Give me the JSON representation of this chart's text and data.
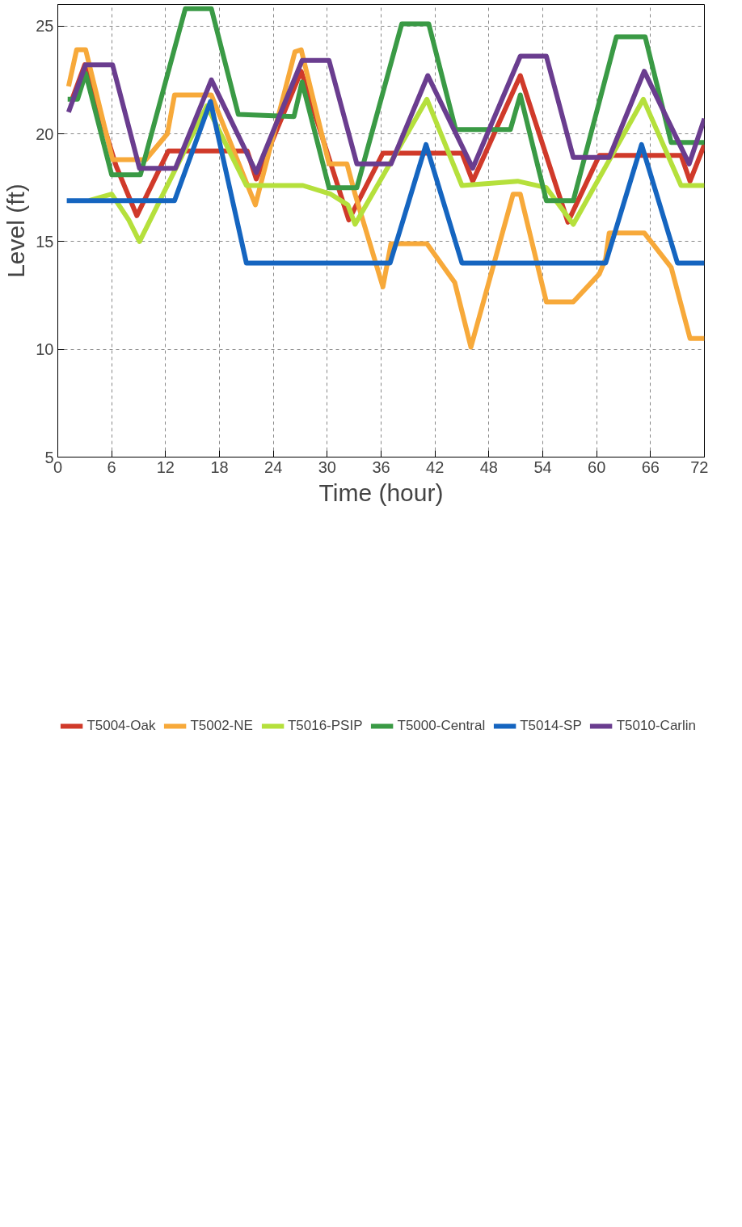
{
  "chart_data": {
    "type": "line",
    "xlabel": "Time (hour)",
    "ylabel": "Level (ft)",
    "xlim": [
      0,
      72
    ],
    "xticks": [
      0,
      6,
      12,
      18,
      24,
      30,
      36,
      42,
      48,
      54,
      60,
      66,
      72
    ],
    "ylim": [
      5,
      26
    ],
    "yticks": [
      5,
      10,
      15,
      20,
      25
    ],
    "grid": true,
    "legend": "bottom",
    "marker": "none",
    "line_style": "solid",
    "series": [
      {
        "name": "T5004-Oak",
        "color": "#d03a2a",
        "x": [
          1.5,
          3,
          6.5,
          8.8,
          12.3,
          21.1,
          22.1,
          27.1,
          32.4,
          36.2,
          45,
          46.2,
          51.5,
          56.8,
          60.3,
          69.4,
          70.4,
          72
        ],
        "values": [
          21.5,
          23.2,
          18.5,
          16.2,
          19.2,
          19.2,
          17.9,
          22.9,
          16,
          19.1,
          19.1,
          17.8,
          22.7,
          15.9,
          19,
          19,
          17.8,
          19.5
        ]
      },
      {
        "name": "T5002-NE",
        "color": "#f7a93a",
        "x": [
          1.2,
          2.1,
          3.1,
          6.1,
          9.8,
          12.2,
          13,
          17.1,
          22,
          26.4,
          27.1,
          30.2,
          32.2,
          33.1,
          36.2,
          37.1,
          41.1,
          44.2,
          46,
          50.7,
          51.5,
          54.4,
          57.4,
          60.3,
          61,
          61.4,
          65.3,
          68.3,
          70.4,
          72
        ],
        "values": [
          22.2,
          23.9,
          23.9,
          18.8,
          18.8,
          20,
          21.8,
          21.8,
          16.7,
          23.8,
          23.9,
          18.6,
          18.6,
          17.2,
          12.9,
          14.9,
          14.9,
          13.1,
          10.1,
          17.2,
          17.2,
          12.2,
          12.2,
          13.5,
          14.2,
          15.4,
          15.4,
          13.8,
          10.5,
          10.5
        ]
      },
      {
        "name": "T5016-PSIP",
        "color": "#b5e03c",
        "x": [
          3.5,
          6,
          7.9,
          9.1,
          16.6,
          21,
          27.3,
          30.4,
          32.3,
          33.1,
          41.1,
          45,
          51.2,
          54.4,
          57.4,
          65.2,
          69.4,
          72
        ],
        "values": [
          16.9,
          17.2,
          16,
          15,
          21.3,
          17.6,
          17.6,
          17.2,
          16.7,
          15.8,
          21.6,
          17.6,
          17.8,
          17.5,
          15.8,
          21.6,
          17.6,
          17.6
        ]
      },
      {
        "name": "T5000-Central",
        "color": "#3a9a45",
        "x": [
          1.1,
          2.2,
          3.1,
          6,
          9.2,
          14.2,
          17.1,
          20.1,
          26.3,
          27.2,
          30.2,
          33.3,
          38.3,
          41.3,
          44.3,
          50.4,
          51.5,
          54.4,
          57.4,
          62.2,
          65.4,
          68.3,
          72
        ],
        "values": [
          21.6,
          21.6,
          22.8,
          18.1,
          18.1,
          25.8,
          25.8,
          20.9,
          20.8,
          22.4,
          17.5,
          17.5,
          25.1,
          25.1,
          20.2,
          20.2,
          21.8,
          16.9,
          16.9,
          24.5,
          24.5,
          19.6,
          19.6
        ]
      },
      {
        "name": "T5014-SP",
        "color": "#1565c0",
        "x": [
          1,
          13,
          17,
          21,
          37,
          41,
          45,
          61,
          65,
          69,
          72
        ],
        "values": [
          16.9,
          16.9,
          21.5,
          14,
          14,
          19.5,
          14,
          14,
          19.5,
          14,
          14
        ]
      },
      {
        "name": "T5010-Carlin",
        "color": "#6a3d8f",
        "x": [
          1.2,
          3.1,
          6.1,
          9.1,
          13.1,
          17.1,
          22.1,
          27.2,
          30.2,
          33.3,
          37.1,
          41.2,
          46.2,
          51.5,
          54.4,
          57.4,
          61.4,
          65.3,
          70.3,
          72
        ],
        "values": [
          21,
          23.2,
          23.2,
          18.4,
          18.4,
          22.5,
          18.2,
          23.4,
          23.4,
          18.6,
          18.6,
          22.7,
          18.4,
          23.6,
          23.6,
          18.9,
          18.9,
          22.9,
          18.6,
          20.7
        ]
      }
    ]
  }
}
